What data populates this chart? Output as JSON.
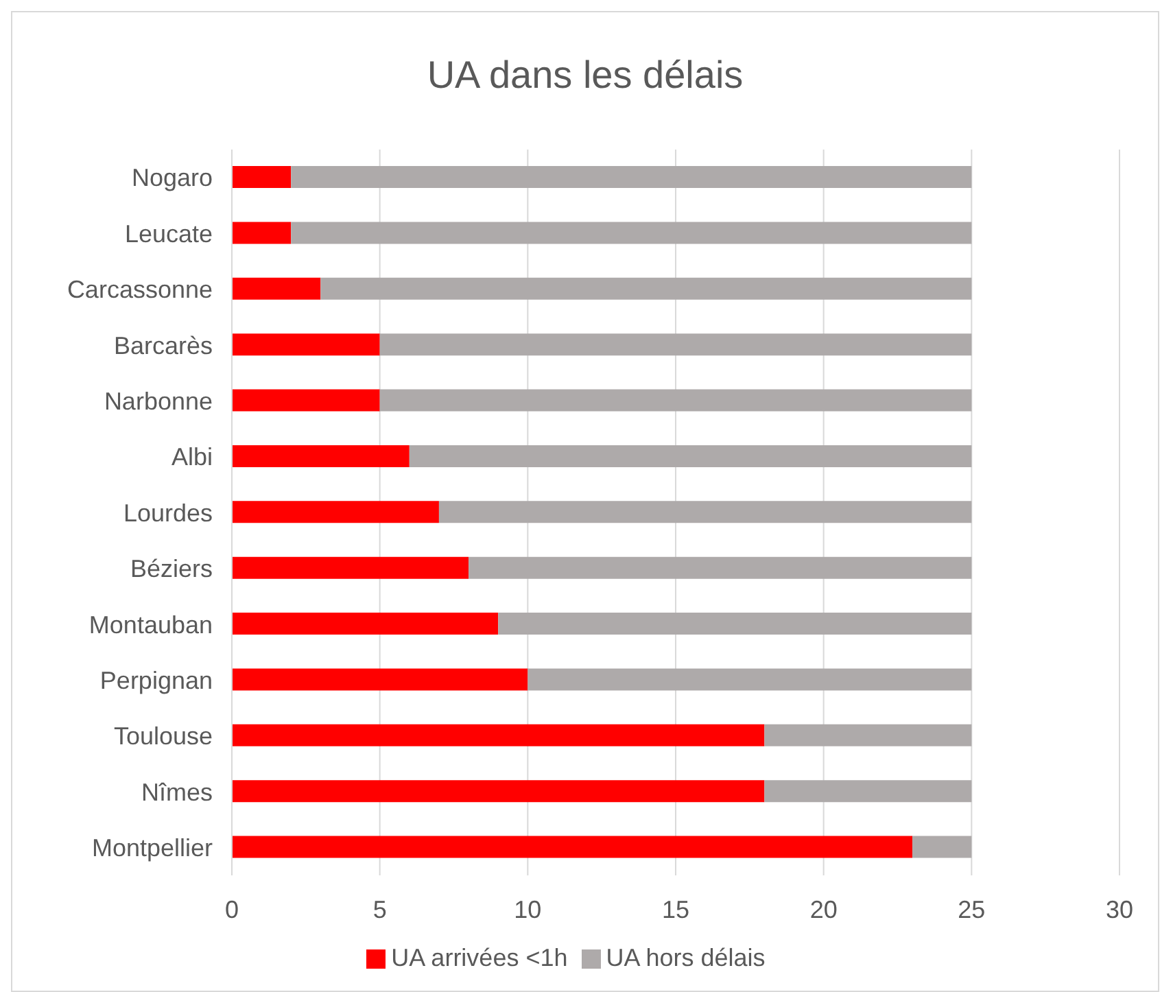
{
  "chart_data": {
    "type": "bar",
    "orientation": "horizontal",
    "stacked": true,
    "title": "UA dans les délais",
    "categories": [
      "Nogaro",
      "Leucate",
      "Carcassonne",
      "Barcarès",
      "Narbonne",
      "Albi",
      "Lourdes",
      "Béziers",
      "Montauban",
      "Perpignan",
      "Toulouse",
      "Nîmes",
      "Montpellier"
    ],
    "series": [
      {
        "name": "UA arrivées <1h",
        "color": "#ff0000",
        "values": [
          2,
          2,
          3,
          5,
          5,
          6,
          7,
          8,
          9,
          10,
          18,
          18,
          23
        ]
      },
      {
        "name": "UA hors délais",
        "color": "#aeaaaa",
        "values": [
          23,
          23,
          22,
          20,
          20,
          19,
          18,
          17,
          16,
          15,
          7,
          7,
          2
        ]
      }
    ],
    "xlim": [
      0,
      30
    ],
    "xticks": [
      0,
      5,
      10,
      15,
      20,
      25,
      30
    ],
    "grid": "x",
    "legend": "bottom"
  }
}
